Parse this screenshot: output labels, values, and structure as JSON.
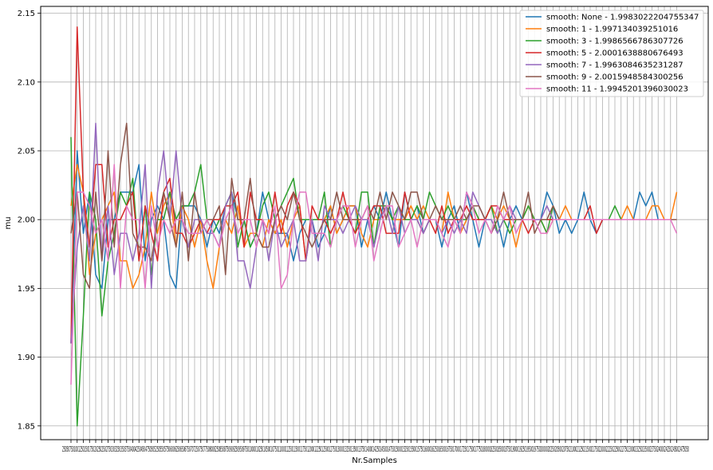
{
  "chart_data": {
    "type": "line",
    "title": "",
    "xlabel": "Nr.Samples",
    "ylabel": "mu",
    "ylim": [
      1.84,
      2.155
    ],
    "y_ticks": [
      "1.85",
      "1.90",
      "1.95",
      "2.00",
      "2.05",
      "2.10",
      "2.15"
    ],
    "y_tick_values": [
      1.85,
      1.9,
      1.95,
      2.0,
      2.05,
      2.1,
      2.15
    ],
    "x_tick_labels": [
      "250",
      "500",
      "750",
      "1000",
      "1250",
      "1500",
      "1750",
      "2000",
      "2250",
      "2500",
      "2750",
      "3000",
      "3250",
      "3500",
      "3750",
      "4000",
      "4250",
      "4500",
      "4750",
      "5000",
      "5250",
      "5500",
      "5750",
      "6000",
      "6250",
      "6500",
      "6750",
      "7000",
      "7250",
      "7500",
      "7750",
      "8000",
      "8250",
      "8500",
      "8750",
      "9000",
      "9250",
      "9500",
      "9750",
      "10000",
      "10250",
      "10500",
      "10750",
      "11000",
      "11250",
      "11500",
      "11750",
      "12000",
      "12250",
      "12500",
      "12750",
      "13000",
      "13250",
      "13500",
      "13750",
      "14000",
      "14250",
      "14500",
      "14750",
      "15000",
      "15250",
      "15500",
      "15750",
      "16000",
      "16250",
      "16500",
      "16750",
      "17000",
      "17250",
      "17500",
      "17750",
      "18000",
      "18250",
      "18500",
      "18750",
      "19000",
      "19250",
      "19500",
      "19750",
      "20000",
      "20250",
      "20500",
      "20750",
      "21000",
      "21250",
      "21500",
      "21750",
      "22000",
      "22250",
      "22500",
      "22750",
      "23000",
      "23250",
      "23500",
      "23750",
      "24000",
      "24250",
      "24500",
      "24750"
    ],
    "x_tick_text": "2505075010012501501750202502502750303250350375040042504504750505250550575060062506506750707250750775080082508508750909250950975010000102501050010750110001125011500117501200012250125001275013000132501350013750140001425014500147501500015250155001575016000162501650016750170001725017500177501800018250185001875019000192501950019750200002025020500207502100021250215002175022000222502250022750230002325023500237502400024250245002475050",
    "x_values": [
      250,
      500,
      750,
      1000,
      1250,
      1500,
      1750,
      2000,
      2250,
      2500,
      2750,
      3000,
      3250,
      3500,
      3750,
      4000,
      4250,
      4500,
      4750,
      5000,
      5250,
      5500,
      5750,
      6000,
      6250,
      6500,
      6750,
      7000,
      7250,
      7500,
      7750,
      8000,
      8250,
      8500,
      8750,
      9000,
      9250,
      9500,
      9750,
      10000,
      10250,
      10500,
      10750,
      11000,
      11250,
      11500,
      11750,
      12000,
      12250,
      12500,
      12750,
      13000,
      13250,
      13500,
      13750,
      14000,
      14250,
      14500,
      14750,
      15000,
      15250,
      15500,
      15750,
      16000,
      16250,
      16500,
      16750,
      17000,
      17250,
      17500,
      17750,
      18000,
      18250,
      18500,
      18750,
      19000,
      19250,
      19500,
      19750,
      20000,
      20250,
      20500,
      20750,
      21000,
      21250,
      21500,
      21750,
      22000,
      22250,
      22500,
      22750,
      23000,
      23250,
      23500,
      23750,
      24000,
      24250,
      24500,
      24750
    ],
    "legend_position": "top-right",
    "grid": true,
    "series": [
      {
        "name": "smooth: None - 1.9983022204755347",
        "color": "#1f77b4",
        "values": [
          1.91,
          2.05,
          1.99,
          2.02,
          1.96,
          1.95,
          2.0,
          2.0,
          2.02,
          2.02,
          2.02,
          2.04,
          1.97,
          2.0,
          2.01,
          2.0,
          1.96,
          1.95,
          2.01,
          2.01,
          2.01,
          2.0,
          1.98,
          2.0,
          1.99,
          2.01,
          2.02,
          2.0,
          2.0,
          1.98,
          1.99,
          2.02,
          2.0,
          1.99,
          1.99,
          1.99,
          1.97,
          1.99,
          2.0,
          2.0,
          1.98,
          1.99,
          2.01,
          1.99,
          2.0,
          2.01,
          2.01,
          1.98,
          2.0,
          2.01,
          2.0,
          2.02,
          2.0,
          1.98,
          2.02,
          2.0,
          2.01,
          1.99,
          2.0,
          2.0,
          1.98,
          2.0,
          2.01,
          1.99,
          2.02,
          2.0,
          1.98,
          2.0,
          2.01,
          2.0,
          1.98,
          2.0,
          2.01,
          2.0,
          2.0,
          2.0,
          2.0,
          2.02,
          2.01,
          1.99,
          2.0,
          1.99,
          2.0,
          2.02,
          2.0,
          1.99,
          2.0,
          2.0,
          2.0,
          2.0,
          2.0,
          2.0,
          2.02,
          2.01,
          2.02,
          2.0,
          2.0,
          2.0,
          2.0
        ]
      },
      {
        "name": "smooth: 1 - 1.997134039251016",
        "color": "#ff7f0e",
        "values": [
          2.01,
          2.04,
          2.02,
          1.96,
          1.99,
          2.0,
          2.01,
          2.02,
          1.97,
          1.97,
          1.95,
          1.96,
          1.98,
          2.02,
          1.99,
          2.01,
          2.02,
          1.98,
          2.01,
          2.0,
          1.98,
          2.0,
          1.97,
          1.95,
          1.98,
          2.0,
          1.99,
          2.01,
          1.98,
          1.99,
          1.99,
          1.98,
          2.0,
          1.99,
          2.0,
          1.98,
          2.0,
          2.01,
          1.97,
          2.0,
          2.0,
          2.0,
          2.01,
          1.99,
          2.0,
          2.01,
          2.01,
          1.99,
          1.98,
          2.0,
          2.0,
          2.01,
          2.0,
          2.0,
          2.0,
          2.01,
          2.0,
          2.01,
          2.0,
          2.0,
          1.99,
          2.02,
          2.0,
          1.99,
          2.0,
          2.01,
          2.0,
          2.0,
          2.01,
          2.0,
          2.01,
          2.0,
          1.98,
          2.0,
          2.01,
          2.0,
          2.0,
          1.99,
          2.0,
          2.0,
          2.01,
          2.0,
          2.0,
          2.0,
          2.0,
          2.0,
          2.0,
          2.0,
          2.0,
          2.0,
          2.01,
          2.0,
          2.0,
          2.0,
          2.01,
          2.01,
          2.0,
          2.0,
          2.02
        ]
      },
      {
        "name": "smooth: 3 - 1.9986566786307726",
        "color": "#2ca02c",
        "values": [
          2.06,
          1.85,
          1.93,
          2.02,
          2.0,
          1.93,
          1.97,
          1.99,
          2.02,
          2.01,
          2.03,
          1.97,
          2.01,
          1.96,
          2.0,
          2.0,
          2.02,
          2.0,
          2.01,
          2.01,
          2.02,
          2.04,
          2.0,
          1.99,
          2.0,
          2.01,
          2.02,
          1.98,
          2.0,
          1.98,
          1.99,
          2.01,
          2.02,
          2.0,
          2.01,
          2.02,
          2.03,
          2.0,
          2.0,
          2.0,
          2.0,
          2.02,
          1.98,
          2.0,
          2.01,
          2.0,
          1.99,
          2.02,
          2.02,
          1.98,
          2.01,
          2.01,
          2.0,
          2.01,
          2.0,
          2.0,
          2.01,
          2.0,
          2.02,
          2.01,
          2.0,
          2.01,
          2.0,
          2.0,
          2.0,
          2.01,
          2.0,
          2.0,
          2.01,
          1.99,
          2.0,
          1.99,
          2.0,
          2.0,
          2.01,
          2.0,
          2.0,
          1.99,
          2.01,
          2.0,
          2.0,
          2.0,
          2.0,
          2.0,
          2.0,
          2.0,
          2.0,
          2.0,
          2.01,
          2.0,
          2.0,
          2.0,
          2.0,
          2.0,
          2.0,
          2.0,
          2.0,
          2.0,
          2.0
        ]
      },
      {
        "name": "smooth: 5 - 2.0001638880676493",
        "color": "#d62728",
        "values": [
          1.91,
          2.14,
          2.02,
          1.98,
          2.04,
          2.04,
          1.98,
          2.0,
          2.0,
          2.01,
          2.02,
          1.97,
          2.01,
          1.99,
          1.97,
          2.02,
          2.03,
          1.99,
          1.99,
          1.98,
          1.99,
          2.0,
          1.99,
          2.0,
          2.0,
          2.01,
          2.01,
          2.02,
          1.98,
          2.02,
          2.0,
          2.0,
          1.99,
          2.02,
          1.99,
          2.01,
          2.02,
          2.01,
          1.97,
          2.01,
          2.0,
          2.0,
          1.99,
          2.0,
          2.02,
          2.0,
          1.99,
          2.0,
          2.0,
          2.01,
          2.01,
          1.99,
          1.99,
          1.99,
          2.02,
          2.0,
          2.0,
          1.99,
          2.0,
          1.99,
          2.01,
          1.99,
          2.0,
          2.0,
          2.01,
          2.0,
          2.0,
          2.0,
          2.01,
          2.01,
          2.0,
          2.0,
          2.0,
          2.0,
          1.99,
          2.0,
          2.0,
          2.0,
          2.0,
          2.0,
          2.0,
          2.0,
          2.0,
          2.0,
          2.01,
          1.99,
          2.0,
          2.0,
          2.0,
          2.0,
          2.0,
          2.0,
          2.0,
          2.0,
          2.0,
          2.0,
          2.0,
          2.0,
          2.0
        ]
      },
      {
        "name": "smooth: 7 - 1.9963084635231287",
        "color": "#9467bd",
        "values": [
          1.91,
          1.98,
          2.01,
          1.97,
          2.07,
          1.97,
          2.01,
          1.96,
          1.99,
          1.99,
          1.97,
          1.99,
          2.04,
          1.95,
          2.02,
          2.05,
          2.0,
          2.05,
          2.0,
          1.98,
          2.0,
          2.0,
          1.99,
          1.99,
          1.98,
          2.01,
          2.02,
          1.97,
          1.97,
          1.95,
          1.98,
          2.0,
          1.97,
          2.0,
          1.98,
          1.99,
          2.0,
          1.97,
          1.97,
          2.0,
          1.97,
          2.01,
          2.0,
          2.0,
          1.99,
          2.0,
          2.01,
          2.0,
          2.0,
          1.98,
          2.0,
          2.01,
          1.99,
          2.01,
          1.99,
          2.0,
          2.0,
          1.99,
          2.0,
          2.0,
          1.99,
          2.0,
          1.99,
          2.0,
          1.99,
          2.02,
          2.01,
          2.0,
          2.0,
          1.99,
          2.0,
          2.01,
          2.0,
          2.0,
          2.0,
          2.0,
          2.0,
          2.01,
          2.0,
          2.0,
          2.0,
          2.0,
          2.0,
          2.0,
          2.0,
          2.0,
          2.0,
          2.0,
          2.0,
          2.0,
          2.0,
          2.0,
          2.0,
          2.0,
          2.0,
          2.0,
          2.0,
          2.0,
          2.0
        ]
      },
      {
        "name": "smooth: 9 - 2.0015948584300256",
        "color": "#8c564b",
        "values": [
          1.99,
          2.02,
          1.96,
          1.95,
          2.02,
          1.97,
          2.05,
          1.98,
          2.04,
          2.07,
          1.99,
          1.98,
          1.98,
          1.97,
          2.0,
          2.02,
          2.0,
          1.98,
          2.02,
          1.97,
          2.02,
          1.99,
          2.0,
          2.0,
          2.01,
          1.96,
          2.03,
          2.0,
          2.0,
          2.03,
          1.99,
          1.98,
          1.98,
          2.0,
          2.01,
          2.0,
          2.02,
          2.0,
          1.99,
          1.98,
          1.99,
          2.0,
          2.0,
          2.02,
          2.0,
          2.0,
          2.0,
          2.0,
          2.01,
          2.0,
          2.02,
          2.0,
          2.02,
          2.01,
          2.0,
          2.02,
          2.02,
          2.0,
          2.0,
          2.01,
          2.0,
          2.0,
          2.0,
          2.01,
          2.0,
          2.01,
          2.01,
          2.0,
          1.99,
          2.0,
          2.02,
          2.0,
          2.0,
          2.0,
          2.02,
          1.99,
          2.0,
          2.0,
          2.01,
          2.0,
          2.0,
          2.0,
          2.0,
          2.0,
          2.0,
          2.0,
          2.0,
          2.0,
          2.0,
          2.0,
          2.0,
          2.0,
          2.0,
          2.0,
          2.0,
          2.0,
          2.0,
          2.0,
          2.0
        ]
      },
      {
        "name": "smooth: 11 - 1.9945201396030023",
        "color": "#e377c2",
        "values": [
          1.88,
          2.02,
          2.02,
          2.01,
          1.99,
          2.0,
          1.97,
          2.04,
          1.95,
          2.01,
          2.0,
          2.0,
          1.95,
          2.01,
          1.98,
          2.0,
          1.99,
          2.0,
          2.0,
          1.99,
          1.99,
          1.99,
          2.0,
          1.99,
          1.98,
          2.0,
          2.01,
          1.99,
          2.0,
          2.0,
          1.98,
          2.0,
          1.99,
          2.01,
          1.95,
          1.96,
          2.0,
          2.02,
          2.02,
          1.99,
          1.99,
          1.99,
          1.98,
          2.0,
          2.01,
          2.01,
          1.98,
          2.0,
          2.01,
          1.97,
          1.99,
          2.01,
          2.01,
          1.98,
          1.99,
          2.0,
          1.98,
          2.0,
          2.0,
          2.0,
          1.99,
          1.98,
          2.0,
          1.99,
          2.02,
          2.01,
          1.99,
          2.0,
          1.99,
          2.01,
          2.0,
          2.01,
          1.99,
          2.0,
          2.0,
          2.0,
          1.99,
          1.99,
          2.0,
          2.0,
          2.0,
          2.0,
          2.0,
          2.0,
          2.0,
          2.0,
          2.0,
          2.0,
          2.0,
          2.0,
          2.0,
          2.0,
          2.0,
          2.0,
          2.0,
          2.0,
          2.0,
          2.0,
          1.99
        ]
      }
    ]
  }
}
